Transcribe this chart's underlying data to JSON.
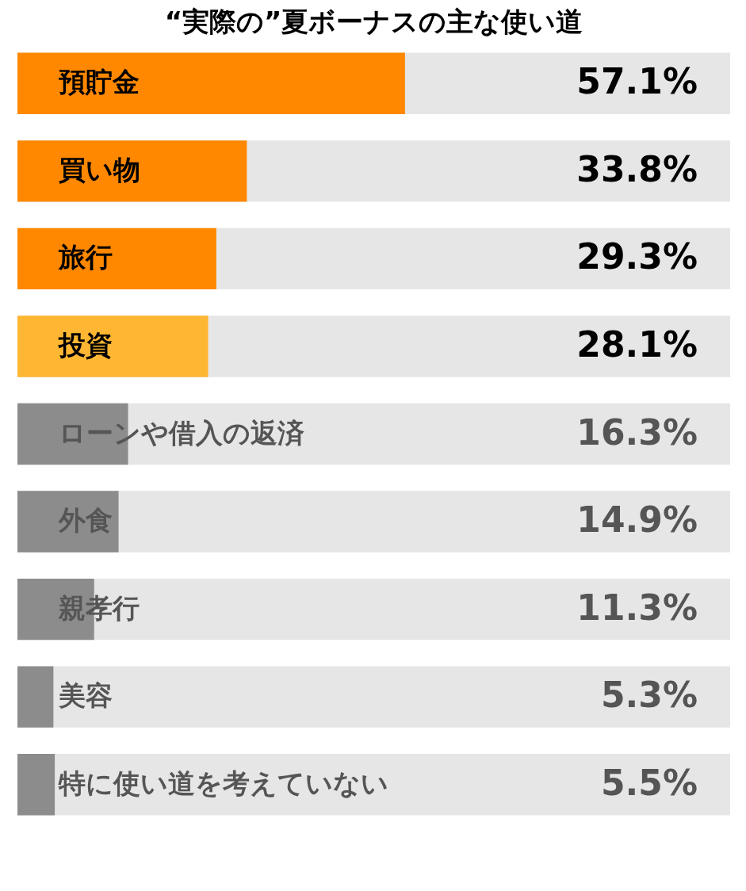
{
  "chart_data": {
    "type": "bar",
    "orientation": "horizontal",
    "title": "“実際の”夏ボーナスの主な使い道",
    "categories": [
      "預貯金",
      "買い物",
      "旅行",
      "投資",
      "ローンや借入の返済",
      "外食",
      "親孝行",
      "美容",
      "特に使い道を考えていない"
    ],
    "values": [
      57.1,
      33.8,
      29.3,
      28.1,
      16.3,
      14.9,
      11.3,
      5.3,
      5.5
    ],
    "value_labels": [
      "57.1%",
      "33.8%",
      "29.3%",
      "28.1%",
      "16.3%",
      "14.9%",
      "11.3%",
      "5.3%",
      "5.5%"
    ],
    "colors": [
      "#ff8800",
      "#ff8800",
      "#ff8800",
      "#ffb733",
      "#8c8c8c",
      "#8c8c8c",
      "#8c8c8c",
      "#8c8c8c",
      "#8c8c8c"
    ],
    "xlim": [
      0,
      105
    ],
    "tick_labels": false
  }
}
